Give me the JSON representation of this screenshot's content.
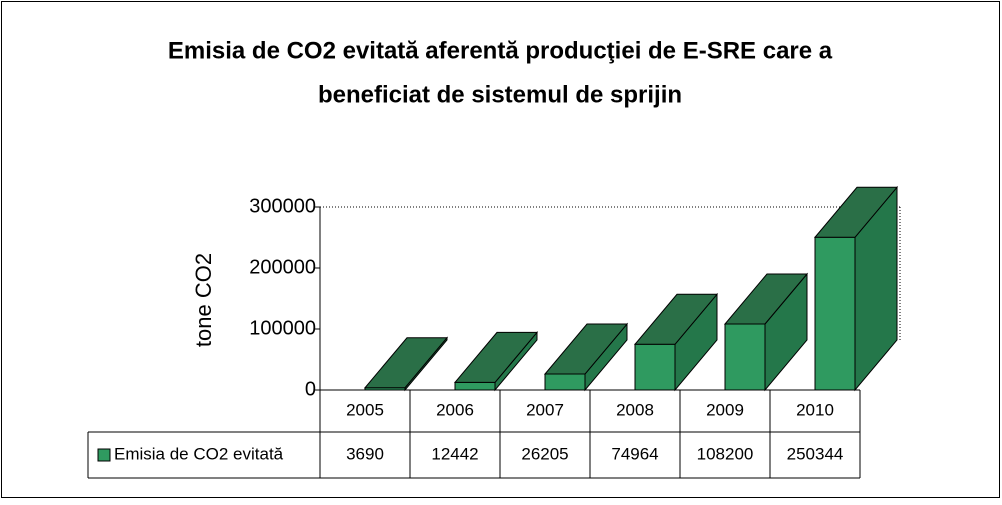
{
  "chart_data": {
    "type": "bar3d",
    "title": [
      "Emisia de CO2 evitată aferentă producţiei de E-SRE care a",
      "beneficiat de sistemul de sprijin"
    ],
    "ylabel": "tone CO2",
    "categories": [
      "2005",
      "2006",
      "2007",
      "2008",
      "2009",
      "2010"
    ],
    "series": [
      {
        "name": "Emisia de CO2 evitată",
        "color": "#2f9a60",
        "values": [
          3690,
          12442,
          26205,
          74964,
          108200,
          250344
        ]
      }
    ],
    "ylim": [
      0,
      300000
    ],
    "yticks": [
      0,
      100000,
      200000,
      300000
    ],
    "grid": false
  }
}
